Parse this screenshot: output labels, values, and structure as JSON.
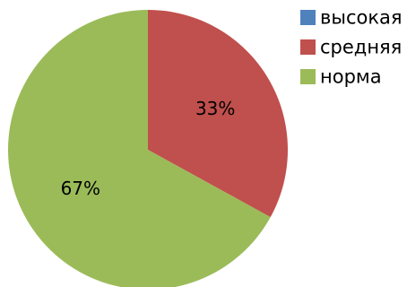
{
  "chart_data": {
    "type": "pie",
    "title": "",
    "categories": [
      "высокая",
      "средняя",
      "норма"
    ],
    "values": [
      0,
      33,
      67
    ],
    "data_labels": [
      "",
      "33%",
      "67%"
    ],
    "colors": [
      "#4F81BD",
      "#C0504D",
      "#9BBB59"
    ],
    "legend_position": "top-right",
    "start_angle": "12 o'clock",
    "direction": "clockwise"
  }
}
